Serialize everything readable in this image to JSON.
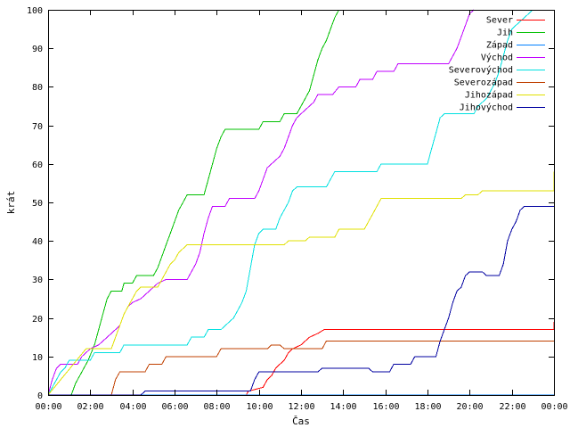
{
  "chart_data": {
    "type": "line",
    "title": "",
    "xlabel": "Čas",
    "ylabel": "krát",
    "xlim": [
      0,
      24
    ],
    "ylim": [
      0,
      100
    ],
    "x_ticks": [
      {
        "value": 0,
        "label": "00:00"
      },
      {
        "value": 2,
        "label": "02:00"
      },
      {
        "value": 4,
        "label": "04:00"
      },
      {
        "value": 6,
        "label": "06:00"
      },
      {
        "value": 8,
        "label": "08:00"
      },
      {
        "value": 10,
        "label": "10:00"
      },
      {
        "value": 12,
        "label": "12:00"
      },
      {
        "value": 14,
        "label": "14:00"
      },
      {
        "value": 16,
        "label": "16:00"
      },
      {
        "value": 18,
        "label": "18:00"
      },
      {
        "value": 20,
        "label": "20:00"
      },
      {
        "value": 22,
        "label": "22:00"
      },
      {
        "value": 24,
        "label": "00:00"
      }
    ],
    "y_ticks": [
      0,
      10,
      20,
      30,
      40,
      50,
      60,
      70,
      80,
      90,
      100
    ],
    "grid": false,
    "legend_position": "top-right",
    "series": [
      {
        "name": "Sever",
        "color": "#ff0000",
        "points": [
          [
            0,
            0
          ],
          [
            9.4,
            0
          ],
          [
            9.5,
            1
          ],
          [
            10.2,
            2
          ],
          [
            10.4,
            4
          ],
          [
            10.6,
            5
          ],
          [
            10.8,
            7
          ],
          [
            11.0,
            8
          ],
          [
            11.2,
            9
          ],
          [
            11.4,
            11
          ],
          [
            11.6,
            12
          ],
          [
            12.0,
            13
          ],
          [
            12.2,
            14
          ],
          [
            12.4,
            15
          ],
          [
            12.8,
            16
          ],
          [
            13.1,
            17
          ],
          [
            24,
            17
          ],
          [
            24,
            19
          ]
        ]
      },
      {
        "name": "Jih",
        "color": "#00c000",
        "points": [
          [
            0,
            0
          ],
          [
            1.1,
            0
          ],
          [
            1.3,
            3
          ],
          [
            1.6,
            6
          ],
          [
            1.9,
            9
          ],
          [
            2.2,
            13
          ],
          [
            2.4,
            17
          ],
          [
            2.6,
            21
          ],
          [
            2.8,
            25
          ],
          [
            3.0,
            27
          ],
          [
            3.5,
            27
          ],
          [
            3.6,
            29
          ],
          [
            4.0,
            29
          ],
          [
            4.2,
            31
          ],
          [
            5.0,
            31
          ],
          [
            5.2,
            33
          ],
          [
            5.4,
            36
          ],
          [
            5.6,
            39
          ],
          [
            5.8,
            42
          ],
          [
            6.0,
            45
          ],
          [
            6.2,
            48
          ],
          [
            6.4,
            50
          ],
          [
            6.6,
            52
          ],
          [
            7.4,
            52
          ],
          [
            7.6,
            56
          ],
          [
            7.8,
            60
          ],
          [
            8.0,
            64
          ],
          [
            8.2,
            67
          ],
          [
            8.4,
            69
          ],
          [
            10.0,
            69
          ],
          [
            10.2,
            71
          ],
          [
            11.0,
            71
          ],
          [
            11.2,
            73
          ],
          [
            11.8,
            73
          ],
          [
            12.0,
            75
          ],
          [
            12.4,
            79
          ],
          [
            12.6,
            83
          ],
          [
            12.8,
            87
          ],
          [
            13.0,
            90
          ],
          [
            13.2,
            92
          ],
          [
            13.4,
            95
          ],
          [
            13.6,
            98
          ],
          [
            13.8,
            100
          ]
        ]
      },
      {
        "name": "Západ",
        "color": "#0080ff",
        "points": [
          [
            0,
            0
          ],
          [
            0.5,
            0
          ],
          [
            24,
            0
          ]
        ]
      },
      {
        "name": "Východ",
        "color": "#c000ff",
        "points": [
          [
            0,
            0
          ],
          [
            0.2,
            4
          ],
          [
            0.4,
            7
          ],
          [
            0.6,
            8
          ],
          [
            1.4,
            8
          ],
          [
            1.6,
            10
          ],
          [
            1.8,
            11
          ],
          [
            2.0,
            12
          ],
          [
            2.4,
            13
          ],
          [
            2.8,
            15
          ],
          [
            3.0,
            16
          ],
          [
            3.4,
            18
          ],
          [
            3.6,
            21
          ],
          [
            3.8,
            23
          ],
          [
            4.0,
            24
          ],
          [
            4.4,
            25
          ],
          [
            4.8,
            27
          ],
          [
            5.2,
            29
          ],
          [
            5.6,
            30
          ],
          [
            6.6,
            30
          ],
          [
            6.8,
            32
          ],
          [
            7.0,
            34
          ],
          [
            7.2,
            37
          ],
          [
            7.4,
            42
          ],
          [
            7.6,
            46
          ],
          [
            7.8,
            49
          ],
          [
            8.4,
            49
          ],
          [
            8.6,
            51
          ],
          [
            9.8,
            51
          ],
          [
            10.0,
            53
          ],
          [
            10.2,
            56
          ],
          [
            10.4,
            59
          ],
          [
            10.6,
            60
          ],
          [
            11.0,
            62
          ],
          [
            11.2,
            64
          ],
          [
            11.4,
            67
          ],
          [
            11.6,
            70
          ],
          [
            11.8,
            72
          ],
          [
            12.2,
            74
          ],
          [
            12.6,
            76
          ],
          [
            12.8,
            78
          ],
          [
            13.5,
            78
          ],
          [
            13.8,
            80
          ],
          [
            14.6,
            80
          ],
          [
            14.8,
            82
          ],
          [
            15.4,
            82
          ],
          [
            15.6,
            84
          ],
          [
            16.4,
            84
          ],
          [
            16.6,
            86
          ],
          [
            19.0,
            86
          ],
          [
            19.2,
            88
          ],
          [
            19.4,
            90
          ],
          [
            19.6,
            93
          ],
          [
            19.8,
            96
          ],
          [
            20.0,
            99
          ],
          [
            20.2,
            100
          ]
        ]
      },
      {
        "name": "Severovýchod",
        "color": "#00e0e0",
        "points": [
          [
            0,
            0
          ],
          [
            0.4,
            4
          ],
          [
            0.6,
            6
          ],
          [
            0.8,
            7
          ],
          [
            1.0,
            9
          ],
          [
            2.0,
            9
          ],
          [
            2.2,
            11
          ],
          [
            3.4,
            11
          ],
          [
            3.6,
            13
          ],
          [
            6.6,
            13
          ],
          [
            6.8,
            15
          ],
          [
            7.4,
            15
          ],
          [
            7.6,
            17
          ],
          [
            8.2,
            17
          ],
          [
            8.4,
            18
          ],
          [
            8.8,
            20
          ],
          [
            9.0,
            22
          ],
          [
            9.2,
            24
          ],
          [
            9.4,
            27
          ],
          [
            9.6,
            33
          ],
          [
            9.8,
            39
          ],
          [
            10.0,
            42
          ],
          [
            10.2,
            43
          ],
          [
            10.8,
            43
          ],
          [
            11.0,
            46
          ],
          [
            11.2,
            48
          ],
          [
            11.4,
            50
          ],
          [
            11.6,
            53
          ],
          [
            11.8,
            54
          ],
          [
            13.2,
            54
          ],
          [
            13.4,
            56
          ],
          [
            13.6,
            58
          ],
          [
            15.6,
            58
          ],
          [
            15.8,
            60
          ],
          [
            18.0,
            60
          ],
          [
            18.2,
            64
          ],
          [
            18.4,
            68
          ],
          [
            18.6,
            72
          ],
          [
            18.8,
            73
          ],
          [
            20.2,
            73
          ],
          [
            20.4,
            75
          ],
          [
            20.8,
            77
          ],
          [
            21.0,
            79
          ],
          [
            21.2,
            81
          ],
          [
            21.4,
            84
          ],
          [
            21.6,
            88
          ],
          [
            21.8,
            92
          ],
          [
            22.0,
            95
          ],
          [
            22.4,
            97
          ],
          [
            22.8,
            99
          ],
          [
            23.0,
            100
          ]
        ]
      },
      {
        "name": "Severozápad",
        "color": "#c04000",
        "points": [
          [
            0,
            0
          ],
          [
            3.0,
            0
          ],
          [
            3.2,
            4
          ],
          [
            3.4,
            6
          ],
          [
            4.6,
            6
          ],
          [
            4.8,
            8
          ],
          [
            5.4,
            8
          ],
          [
            5.6,
            10
          ],
          [
            8.0,
            10
          ],
          [
            8.2,
            12
          ],
          [
            10.4,
            12
          ],
          [
            10.6,
            13
          ],
          [
            11.0,
            13
          ],
          [
            11.2,
            12
          ],
          [
            13.0,
            12
          ],
          [
            13.2,
            14
          ],
          [
            24,
            14
          ]
        ]
      },
      {
        "name": "Jihozápad",
        "color": "#e0e000",
        "points": [
          [
            0,
            0
          ],
          [
            0.3,
            2
          ],
          [
            0.6,
            4
          ],
          [
            0.9,
            6
          ],
          [
            1.2,
            8
          ],
          [
            1.5,
            10
          ],
          [
            1.8,
            12
          ],
          [
            3.0,
            12
          ],
          [
            3.2,
            15
          ],
          [
            3.4,
            18
          ],
          [
            3.6,
            21
          ],
          [
            3.8,
            23
          ],
          [
            4.0,
            25
          ],
          [
            4.2,
            27
          ],
          [
            4.4,
            28
          ],
          [
            5.2,
            28
          ],
          [
            5.4,
            30
          ],
          [
            5.6,
            32
          ],
          [
            5.8,
            34
          ],
          [
            6.0,
            35
          ],
          [
            6.2,
            37
          ],
          [
            6.4,
            38
          ],
          [
            6.6,
            39
          ],
          [
            11.2,
            39
          ],
          [
            11.4,
            40
          ],
          [
            12.2,
            40
          ],
          [
            12.4,
            41
          ],
          [
            13.6,
            41
          ],
          [
            13.8,
            43
          ],
          [
            15.0,
            43
          ],
          [
            15.2,
            45
          ],
          [
            15.4,
            47
          ],
          [
            15.6,
            49
          ],
          [
            15.8,
            51
          ],
          [
            19.6,
            51
          ],
          [
            19.8,
            52
          ],
          [
            20.4,
            52
          ],
          [
            20.6,
            53
          ],
          [
            24,
            53
          ],
          [
            24,
            58
          ]
        ]
      },
      {
        "name": "Jihovýchod",
        "color": "#0000a0",
        "points": [
          [
            0,
            0
          ],
          [
            4.4,
            0
          ],
          [
            4.6,
            1
          ],
          [
            9.6,
            1
          ],
          [
            9.8,
            4
          ],
          [
            10.0,
            6
          ],
          [
            12.8,
            6
          ],
          [
            13.0,
            7
          ],
          [
            15.2,
            7
          ],
          [
            15.4,
            6
          ],
          [
            16.2,
            6
          ],
          [
            16.4,
            8
          ],
          [
            17.2,
            8
          ],
          [
            17.4,
            10
          ],
          [
            18.4,
            10
          ],
          [
            18.6,
            14
          ],
          [
            18.8,
            17
          ],
          [
            19.0,
            20
          ],
          [
            19.2,
            24
          ],
          [
            19.4,
            27
          ],
          [
            19.6,
            28
          ],
          [
            19.8,
            31
          ],
          [
            20.0,
            32
          ],
          [
            20.6,
            32
          ],
          [
            20.8,
            31
          ],
          [
            21.4,
            31
          ],
          [
            21.6,
            34
          ],
          [
            21.8,
            40
          ],
          [
            22.0,
            43
          ],
          [
            22.2,
            45
          ],
          [
            22.4,
            48
          ],
          [
            22.6,
            49
          ],
          [
            24,
            49
          ]
        ]
      }
    ]
  }
}
